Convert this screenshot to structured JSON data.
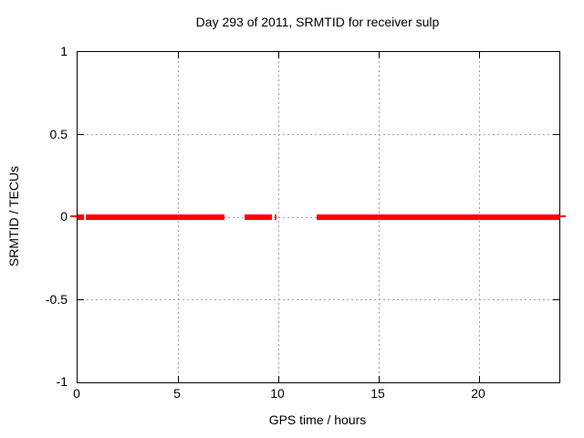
{
  "title": "Day 293 of 2011, SRMTID for receiver sulp",
  "chart_data": {
    "type": "line",
    "title": "Day 293 of 2011, SRMTID for receiver sulp",
    "xlabel": "GPS time / hours",
    "ylabel": "SRMTID / TECUs",
    "xlim": [
      0,
      24
    ],
    "ylim": [
      -1,
      1
    ],
    "xticks": [
      0,
      5,
      10,
      15,
      20
    ],
    "yticks": [
      1,
      0.5,
      0,
      -0.5,
      -1
    ],
    "grid": true,
    "legend": "none",
    "series": [
      {
        "name": "SRMTID",
        "color": "#ff0000",
        "style": "thick-horizontal-segments",
        "y_value": 0,
        "segments_x_hours": [
          [
            0.0,
            0.3
          ],
          [
            0.42,
            7.3
          ],
          [
            8.3,
            9.66
          ],
          [
            9.8,
            9.9
          ],
          [
            11.9,
            24.0
          ]
        ]
      }
    ],
    "zero_edge_dashes": true,
    "colors": {
      "line": "#ff0000",
      "grid": "#a0a0a0",
      "axis": "#000000",
      "background": "#ffffff",
      "text": "#000000"
    }
  }
}
